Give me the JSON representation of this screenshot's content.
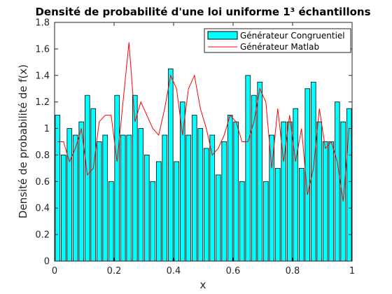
{
  "chart_data": {
    "type": "bar",
    "title": "Densité de probabilité d'une loi uniforme 1³ échantillons",
    "xlabel": "x",
    "ylabel": "Densité de probabilité de f(x)",
    "xlim": [
      0,
      1
    ],
    "ylim": [
      0,
      1.8
    ],
    "xticks": [
      0,
      0.2,
      0.4,
      0.6,
      0.8,
      1
    ],
    "xtick_labels": [
      "0",
      "0.2",
      "0.4",
      "0.6",
      "0.8",
      "1"
    ],
    "yticks": [
      0,
      0.2,
      0.4,
      0.6,
      0.8,
      1,
      1.2,
      1.4,
      1.6,
      1.8
    ],
    "ytick_labels": [
      "0",
      "0.2",
      "0.4",
      "0.6",
      "0.8",
      "1",
      "1.2",
      "1.4",
      "1.6",
      "1.8"
    ],
    "grid": false,
    "legend_position": "top-right",
    "bar_color": "#00ffff",
    "line_color": "#ff0000",
    "series": [
      {
        "name": "Générateur Congruentiel",
        "type": "bar",
        "x": [
          0.01,
          0.03,
          0.05,
          0.07,
          0.09,
          0.11,
          0.13,
          0.15,
          0.17,
          0.19,
          0.21,
          0.23,
          0.25,
          0.27,
          0.29,
          0.31,
          0.33,
          0.35,
          0.37,
          0.39,
          0.41,
          0.43,
          0.45,
          0.47,
          0.49,
          0.51,
          0.53,
          0.55,
          0.57,
          0.59,
          0.61,
          0.63,
          0.65,
          0.67,
          0.69,
          0.71,
          0.73,
          0.75,
          0.77,
          0.79,
          0.81,
          0.83,
          0.85,
          0.87,
          0.89,
          0.91,
          0.93,
          0.95,
          0.97,
          0.99
        ],
        "values": [
          1.1,
          0.8,
          1.0,
          0.95,
          1.05,
          1.25,
          1.15,
          0.9,
          0.95,
          0.6,
          1.25,
          0.95,
          0.95,
          1.25,
          1.0,
          0.8,
          0.6,
          0.75,
          0.95,
          1.45,
          0.75,
          1.2,
          0.95,
          1.1,
          1.0,
          0.85,
          0.95,
          0.65,
          0.9,
          1.1,
          1.05,
          0.6,
          1.4,
          1.25,
          1.35,
          0.6,
          0.95,
          0.7,
          1.05,
          1.05,
          1.15,
          0.7,
          1.3,
          1.35,
          1.05,
          0.9,
          0.9,
          1.2,
          1.05,
          1.15
        ]
      },
      {
        "name": "Générateur Matlab",
        "type": "line",
        "x": [
          0.01,
          0.03,
          0.05,
          0.07,
          0.09,
          0.11,
          0.13,
          0.15,
          0.17,
          0.19,
          0.21,
          0.23,
          0.25,
          0.27,
          0.29,
          0.31,
          0.33,
          0.35,
          0.37,
          0.39,
          0.41,
          0.43,
          0.45,
          0.47,
          0.49,
          0.51,
          0.53,
          0.55,
          0.57,
          0.59,
          0.61,
          0.63,
          0.65,
          0.67,
          0.69,
          0.71,
          0.73,
          0.75,
          0.77,
          0.79,
          0.81,
          0.83,
          0.85,
          0.87,
          0.89,
          0.91,
          0.93,
          0.95,
          0.97,
          0.99
        ],
        "values": [
          0.9,
          0.9,
          0.75,
          0.85,
          1.0,
          0.65,
          0.7,
          1.05,
          1.1,
          1.1,
          0.75,
          1.2,
          1.65,
          1.05,
          1.2,
          1.1,
          1.0,
          0.95,
          1.15,
          1.4,
          1.3,
          0.95,
          1.3,
          1.4,
          1.15,
          1.0,
          0.8,
          0.85,
          0.95,
          1.1,
          1.05,
          0.9,
          0.9,
          1.05,
          1.3,
          1.2,
          0.7,
          1.15,
          0.75,
          1.1,
          0.75,
          1.0,
          0.5,
          0.7,
          1.15,
          0.85,
          0.9,
          0.75,
          0.45,
          1.0
        ]
      }
    ]
  }
}
